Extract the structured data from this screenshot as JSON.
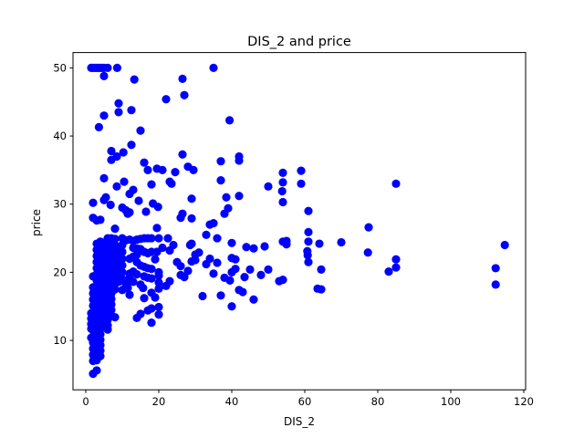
{
  "chart_data": {
    "type": "scatter",
    "title": "DIS_2 and price",
    "xlabel": "DIS_2",
    "ylabel": "price",
    "xlim": [
      -3.5,
      120.5
    ],
    "ylim": [
      2.75,
      52.25
    ],
    "xticks": [
      0,
      20,
      40,
      60,
      80,
      100,
      120
    ],
    "yticks": [
      10,
      20,
      30,
      40,
      50
    ],
    "grid": false,
    "legend": "none",
    "marker_color": "#0000ff",
    "points": [
      [
        1.5,
        50
      ],
      [
        2,
        50
      ],
      [
        2.5,
        50
      ],
      [
        3,
        50
      ],
      [
        3.5,
        50
      ],
      [
        4,
        50
      ],
      [
        4.5,
        50
      ],
      [
        5,
        50
      ],
      [
        6,
        50
      ],
      [
        8.6,
        50
      ],
      [
        35,
        50
      ],
      [
        5,
        48.8
      ],
      [
        13.3,
        48.3
      ],
      [
        26.5,
        48.4
      ],
      [
        22,
        45.4
      ],
      [
        27,
        46
      ],
      [
        9,
        44.8
      ],
      [
        12.5,
        43.8
      ],
      [
        9,
        43.5
      ],
      [
        5,
        43
      ],
      [
        3.6,
        41.3
      ],
      [
        39.4,
        42.3
      ],
      [
        15,
        40.8
      ],
      [
        10.3,
        37.6
      ],
      [
        12.5,
        38.7
      ],
      [
        7,
        37.8
      ],
      [
        7,
        36.5
      ],
      [
        8.5,
        37
      ],
      [
        16,
        36.1
      ],
      [
        26.5,
        37.3
      ],
      [
        17,
        35
      ],
      [
        19.5,
        35.2
      ],
      [
        21,
        35
      ],
      [
        24.5,
        34.7
      ],
      [
        28,
        35.5
      ],
      [
        29.5,
        35
      ],
      [
        37,
        36.3
      ],
      [
        42,
        36.4
      ],
      [
        42,
        37
      ],
      [
        54,
        34.6
      ],
      [
        59,
        34.9
      ],
      [
        5,
        33.8
      ],
      [
        10.5,
        33.3
      ],
      [
        8.5,
        32.6
      ],
      [
        13,
        32.1
      ],
      [
        18,
        32.9
      ],
      [
        23,
        33.3
      ],
      [
        23.5,
        33
      ],
      [
        37,
        33.5
      ],
      [
        50,
        32.6
      ],
      [
        54,
        33.2
      ],
      [
        59,
        33
      ],
      [
        85,
        33
      ],
      [
        12,
        31.5
      ],
      [
        14.5,
        30.5
      ],
      [
        18.4,
        30.1
      ],
      [
        19.8,
        29.6
      ],
      [
        29,
        30.8
      ],
      [
        38.5,
        31
      ],
      [
        42,
        31.2
      ],
      [
        53.8,
        31.9
      ],
      [
        54,
        30.3
      ],
      [
        5,
        30.6
      ],
      [
        5.5,
        31
      ],
      [
        6.8,
        29.9
      ],
      [
        2,
        30.2
      ],
      [
        10,
        29.5
      ],
      [
        11,
        29.1
      ],
      [
        11.5,
        28.6
      ],
      [
        12,
        28.8
      ],
      [
        16.5,
        28.9
      ],
      [
        26.5,
        28.6
      ],
      [
        26,
        28
      ],
      [
        29,
        27.9
      ],
      [
        34,
        27
      ],
      [
        35,
        27.2
      ],
      [
        38,
        28.6
      ],
      [
        39,
        29.4
      ],
      [
        61,
        29
      ],
      [
        2,
        28
      ],
      [
        3,
        27.6
      ],
      [
        4,
        27.7
      ],
      [
        8,
        26.4
      ],
      [
        19.5,
        26.5
      ],
      [
        33,
        25.5
      ],
      [
        36,
        25
      ],
      [
        40,
        24.3
      ],
      [
        44,
        23.7
      ],
      [
        46,
        23.5
      ],
      [
        49,
        23.8
      ],
      [
        54,
        24.5
      ],
      [
        55,
        24.6
      ],
      [
        55,
        24.1
      ],
      [
        61,
        24.5
      ],
      [
        61,
        25.9
      ],
      [
        64,
        24.2
      ],
      [
        70,
        24.4
      ],
      [
        77.5,
        26.6
      ],
      [
        77.3,
        22.9
      ],
      [
        85,
        21.9
      ],
      [
        85,
        20.7
      ],
      [
        83,
        20.1
      ],
      [
        112.3,
        20.6
      ],
      [
        112.3,
        18.2
      ],
      [
        114.8,
        24
      ],
      [
        60.7,
        23.1
      ],
      [
        60.8,
        22.5
      ],
      [
        61,
        21.5
      ],
      [
        64.5,
        20.4
      ],
      [
        63.5,
        17.6
      ],
      [
        64.5,
        17.5
      ],
      [
        53,
        18.7
      ],
      [
        54,
        18.9
      ],
      [
        50,
        20.4
      ],
      [
        48,
        19.6
      ],
      [
        45,
        20.4
      ],
      [
        46,
        16
      ],
      [
        43,
        17.1
      ],
      [
        43.5,
        19.3
      ],
      [
        42,
        17.4
      ],
      [
        41,
        20.5
      ],
      [
        40,
        15
      ],
      [
        40,
        20
      ],
      [
        41,
        21.9
      ],
      [
        40,
        22.1
      ],
      [
        39.5,
        18.8
      ],
      [
        38,
        19.2
      ],
      [
        37,
        16.6
      ],
      [
        35,
        19.8
      ],
      [
        36,
        21.4
      ],
      [
        34,
        22
      ],
      [
        33,
        21.2
      ],
      [
        32,
        16.5
      ],
      [
        30,
        22.6
      ],
      [
        30,
        21.8
      ],
      [
        31,
        22.9
      ],
      [
        25,
        21.5
      ],
      [
        26,
        20.9
      ],
      [
        26,
        19.6
      ],
      [
        27,
        19.3
      ],
      [
        28,
        20.2
      ],
      [
        28.6,
        24
      ],
      [
        29,
        24.2
      ],
      [
        29,
        21.6
      ],
      [
        23,
        23.2
      ],
      [
        24,
        24
      ],
      [
        22.5,
        25
      ],
      [
        21,
        23.6
      ],
      [
        20,
        25
      ],
      [
        19.5,
        23
      ],
      [
        19,
        21.9
      ],
      [
        20,
        20
      ],
      [
        20,
        19.5
      ],
      [
        20,
        18.5
      ],
      [
        20,
        17.6
      ],
      [
        22,
        18
      ],
      [
        23,
        18.7
      ],
      [
        19,
        16.3
      ],
      [
        18,
        17
      ],
      [
        17,
        19.2
      ],
      [
        15.7,
        17.7
      ],
      [
        16,
        16.2
      ],
      [
        17,
        14.4
      ],
      [
        18,
        14.7
      ],
      [
        18,
        12.6
      ],
      [
        20,
        13.8
      ],
      [
        20,
        14.9
      ],
      [
        15,
        13.9
      ],
      [
        14,
        13.3
      ],
      [
        18,
        25
      ],
      [
        17,
        25
      ],
      [
        16,
        25
      ],
      [
        15,
        24.9
      ],
      [
        14,
        24.8
      ],
      [
        13,
        24.6
      ],
      [
        12,
        24.8
      ],
      [
        11,
        24.7
      ],
      [
        13,
        23.6
      ],
      [
        14,
        23.5
      ],
      [
        15,
        23.4
      ],
      [
        16,
        23
      ],
      [
        17,
        22.8
      ],
      [
        18,
        23
      ],
      [
        14,
        22.6
      ],
      [
        13,
        22.3
      ],
      [
        12,
        22
      ],
      [
        14,
        21.5
      ],
      [
        15,
        21
      ],
      [
        16,
        20.8
      ],
      [
        17,
        20.6
      ],
      [
        18,
        20.5
      ],
      [
        13,
        20.1
      ],
      [
        12,
        19.8
      ],
      [
        14,
        19.7
      ],
      [
        16,
        19.4
      ],
      [
        18,
        19.1
      ],
      [
        12,
        19.2
      ],
      [
        13,
        18.6
      ],
      [
        15,
        18.2
      ],
      [
        11,
        18.3
      ],
      [
        11.5,
        17.7
      ],
      [
        10,
        17.4
      ],
      [
        12,
        16.7
      ],
      [
        10,
        25
      ],
      [
        10,
        24
      ],
      [
        10,
        23
      ],
      [
        10,
        22
      ],
      [
        10,
        21
      ],
      [
        10,
        20
      ],
      [
        10,
        19
      ],
      [
        9,
        23.1
      ],
      [
        9,
        22.2
      ],
      [
        9,
        21.3
      ],
      [
        9,
        20.4
      ],
      [
        9,
        19.4
      ],
      [
        9,
        18.6
      ],
      [
        8,
        24.9
      ],
      [
        8,
        24
      ],
      [
        8,
        23.2
      ],
      [
        8,
        22.4
      ],
      [
        8,
        21.6
      ],
      [
        8,
        20.8
      ],
      [
        8,
        20
      ],
      [
        8,
        19.1
      ],
      [
        8,
        18.3
      ],
      [
        8,
        17.5
      ],
      [
        7,
        25
      ],
      [
        7,
        24.2
      ],
      [
        7,
        23.4
      ],
      [
        7,
        22.6
      ],
      [
        7,
        21.8
      ],
      [
        7,
        21
      ],
      [
        7,
        20.2
      ],
      [
        7,
        19.3
      ],
      [
        7,
        18.5
      ],
      [
        7,
        17.7
      ],
      [
        7,
        16.9
      ],
      [
        7,
        16.1
      ],
      [
        7,
        15.3
      ],
      [
        7,
        14.5
      ],
      [
        7,
        13.7
      ],
      [
        8,
        13.4
      ],
      [
        6,
        25
      ],
      [
        6,
        24.2
      ],
      [
        6,
        23.4
      ],
      [
        6,
        22.6
      ],
      [
        6,
        21.8
      ],
      [
        6,
        21
      ],
      [
        6,
        20.2
      ],
      [
        6,
        19.4
      ],
      [
        6,
        18.6
      ],
      [
        6,
        17.8
      ],
      [
        6,
        17
      ],
      [
        6,
        16.2
      ],
      [
        6,
        15.4
      ],
      [
        6,
        14.6
      ],
      [
        6,
        13.8
      ],
      [
        6,
        13
      ],
      [
        6,
        12.2
      ],
      [
        6,
        11.6
      ],
      [
        5,
        24.1
      ],
      [
        5,
        23.3
      ],
      [
        5,
        22.5
      ],
      [
        5,
        21.7
      ],
      [
        5,
        20.9
      ],
      [
        5,
        20.1
      ],
      [
        5,
        19.3
      ],
      [
        5,
        18.5
      ],
      [
        5,
        17.7
      ],
      [
        5,
        16.9
      ],
      [
        5,
        16.1
      ],
      [
        5,
        15.3
      ],
      [
        5,
        14.5
      ],
      [
        5,
        13.7
      ],
      [
        5,
        12.9
      ],
      [
        5,
        12.1
      ],
      [
        4,
        24.5
      ],
      [
        4,
        23.7
      ],
      [
        4,
        22.9
      ],
      [
        4,
        22.1
      ],
      [
        4,
        21.3
      ],
      [
        4,
        20.5
      ],
      [
        4,
        19.7
      ],
      [
        4,
        18.9
      ],
      [
        4,
        18.1
      ],
      [
        4,
        17.3
      ],
      [
        4,
        16.5
      ],
      [
        4,
        15.7
      ],
      [
        4,
        14.9
      ],
      [
        4,
        14.1
      ],
      [
        4,
        13.3
      ],
      [
        4,
        12.5
      ],
      [
        4,
        11.7
      ],
      [
        4,
        10.9
      ],
      [
        4,
        10.1
      ],
      [
        4,
        9.3
      ],
      [
        4,
        8.5
      ],
      [
        4,
        7.7
      ],
      [
        3,
        24.2
      ],
      [
        3,
        23.3
      ],
      [
        3,
        22.4
      ],
      [
        3,
        21.5
      ],
      [
        3,
        20.6
      ],
      [
        3,
        19.7
      ],
      [
        3,
        18.8
      ],
      [
        3,
        17.9
      ],
      [
        3,
        17
      ],
      [
        3,
        16.1
      ],
      [
        3,
        15.2
      ],
      [
        3,
        14.3
      ],
      [
        3,
        13.4
      ],
      [
        3,
        12.5
      ],
      [
        3,
        11.6
      ],
      [
        3,
        10.7
      ],
      [
        3,
        9.8
      ],
      [
        3,
        8.9
      ],
      [
        3,
        8
      ],
      [
        3,
        7.1
      ],
      [
        3,
        5.6
      ],
      [
        2,
        19.4
      ],
      [
        2,
        17.8
      ],
      [
        2,
        16.9
      ],
      [
        2,
        16
      ],
      [
        2,
        15.1
      ],
      [
        2,
        14.2
      ],
      [
        2,
        13.3
      ],
      [
        2,
        12.4
      ],
      [
        2,
        11.5
      ],
      [
        2,
        10.6
      ],
      [
        2,
        9.7
      ],
      [
        2,
        8.8
      ],
      [
        2,
        7.9
      ],
      [
        2,
        7
      ],
      [
        2,
        5.1
      ],
      [
        1.5,
        14
      ],
      [
        1.5,
        13.2
      ],
      [
        1.5,
        12.4
      ],
      [
        1.5,
        11.7
      ],
      [
        1.5,
        10.4
      ]
    ]
  }
}
